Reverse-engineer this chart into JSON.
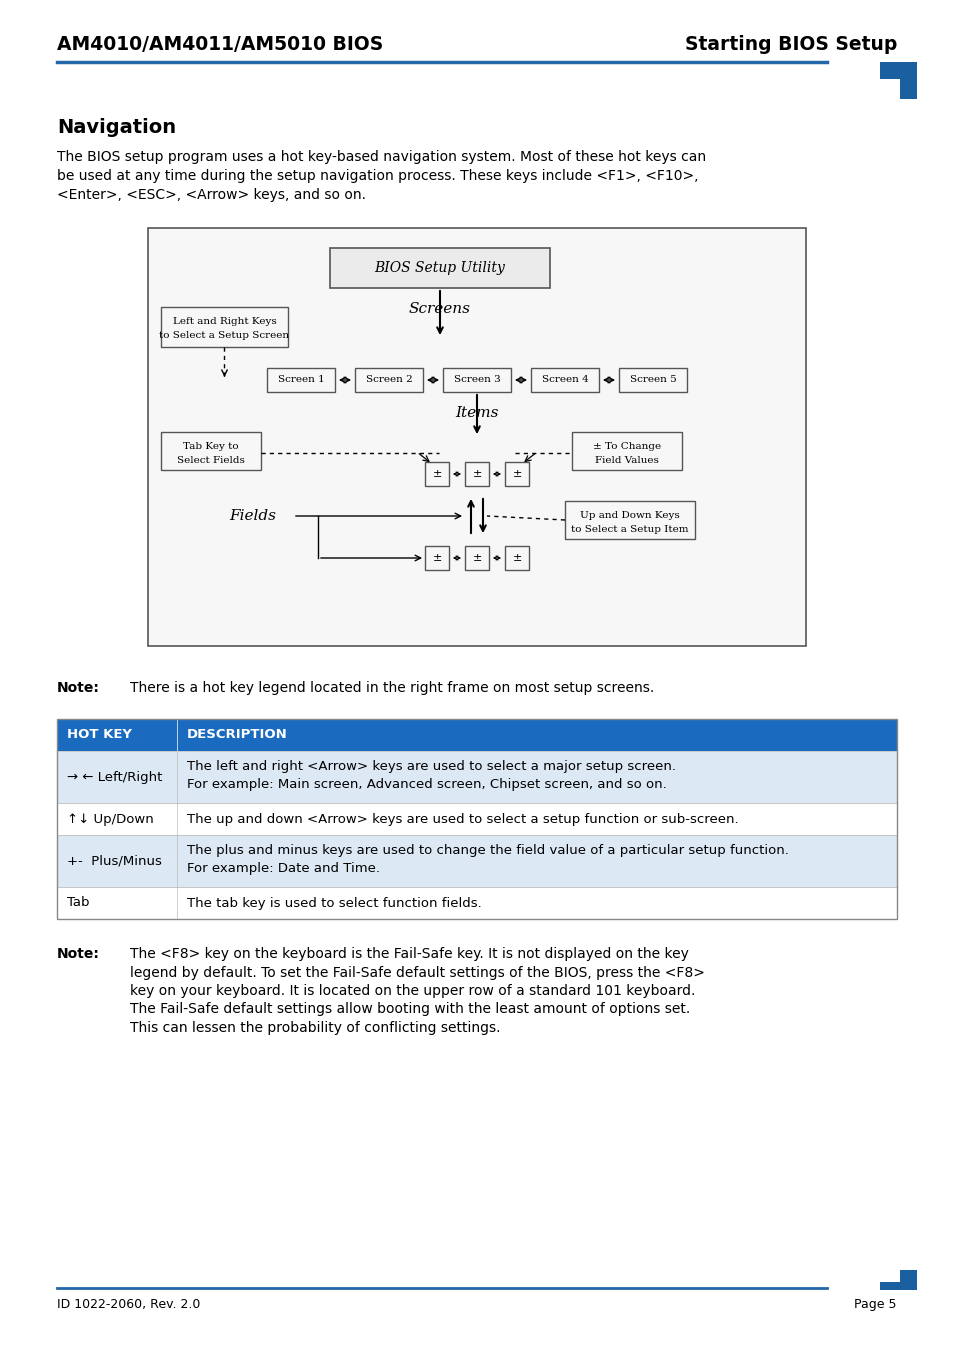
{
  "header_left": "AM4010/AM4011/AM5010 BIOS",
  "header_right": "Starting BIOS Setup",
  "header_line_color": "#2367a8",
  "header_square_color": "#1a5fa0",
  "section_title": "Navigation",
  "body_text_line1": "The BIOS setup program uses a hot key-based navigation system. Most of these hot keys can",
  "body_text_line2": "be used at any time during the setup navigation process. These keys include <F1>, <F10>,",
  "body_text_line3": "<Enter>, <ESC>, <Arrow> keys, and so on.",
  "note1_label": "Note:",
  "note1_text": "There is a hot key legend located in the right frame on most setup screens.",
  "table_header": [
    "HOT KEY",
    "DESCRIPTION"
  ],
  "table_header_bg": "#1a6abf",
  "table_header_color": "#ffffff",
  "table_rows": [
    [
      "→ ← Left/Right",
      "The left and right <Arrow> keys are used to select a major setup screen.",
      "For example: Main screen, Advanced screen, Chipset screen, and so on."
    ],
    [
      "↑↓ Up/Down",
      "The up and down <Arrow> keys are used to select a setup function or sub-screen.",
      ""
    ],
    [
      "+-  Plus/Minus",
      "The plus and minus keys are used to change the field value of a particular setup function.",
      "For example: Date and Time."
    ],
    [
      "Tab",
      "The tab key is used to select function fields.",
      ""
    ]
  ],
  "note2_label": "Note:",
  "note2_lines": [
    "The <F8> key on the keyboard is the Fail-Safe key. It is not displayed on the key",
    "legend by default. To set the Fail-Safe default settings of the BIOS, press the <F8>",
    "key on your keyboard. It is located on the upper row of a standard 101 keyboard.",
    "The Fail-Safe default settings allow booting with the least amount of options set.",
    "This can lessen the probability of conflicting settings."
  ],
  "footer_left": "ID 1022-2060, Rev. 2.0",
  "footer_right": "Page 5",
  "bg_color": "#ffffff",
  "text_color": "#000000",
  "line_color": "#2367a8"
}
